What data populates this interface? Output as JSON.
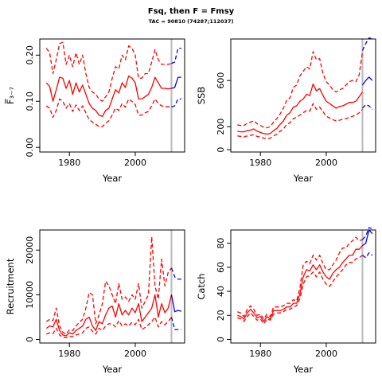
{
  "title": "Fsq, then F = Fmsy",
  "subtitle": "TAC = 90810 (74287;112037)",
  "colors": {
    "historic": "#ff0000",
    "projection": "#0000ff",
    "year_marker": "#bebebe",
    "axes": "#000000"
  },
  "chart_data": [
    {
      "type": "line",
      "id": "fbar",
      "xlabel": "Year",
      "ylabel": "F̅₃₋₇",
      "xlim": [
        1971,
        2015
      ],
      "ylim": [
        -0.01,
        0.235
      ],
      "xticks": [
        1980,
        2000
      ],
      "yticks": [
        0.0,
        0.1,
        0.2
      ],
      "ytick_labels": [
        "0.00",
        "0.10",
        "0.20"
      ],
      "assessment_year": 2011,
      "historic": {
        "x": [
          1973,
          1974,
          1975,
          1976,
          1977,
          1978,
          1979,
          1980,
          1981,
          1982,
          1983,
          1984,
          1985,
          1986,
          1987,
          1988,
          1989,
          1990,
          1991,
          1992,
          1993,
          1994,
          1995,
          1996,
          1997,
          1998,
          1999,
          2000,
          2001,
          2002,
          2003,
          2004,
          2005,
          2006,
          2007,
          2008,
          2009,
          2010,
          2011
        ],
        "median": [
          0.14,
          0.132,
          0.1,
          0.125,
          0.152,
          0.15,
          0.128,
          0.145,
          0.115,
          0.14,
          0.12,
          0.135,
          0.115,
          0.095,
          0.085,
          0.08,
          0.07,
          0.067,
          0.08,
          0.085,
          0.105,
          0.125,
          0.118,
          0.14,
          0.13,
          0.155,
          0.15,
          0.14,
          0.105,
          0.105,
          0.11,
          0.115,
          0.13,
          0.152,
          0.14,
          0.128,
          0.128,
          0.127,
          0.128
        ],
        "upper": [
          0.215,
          0.205,
          0.16,
          0.19,
          0.225,
          0.228,
          0.18,
          0.2,
          0.175,
          0.205,
          0.18,
          0.2,
          0.16,
          0.13,
          0.12,
          0.115,
          0.105,
          0.1,
          0.11,
          0.12,
          0.15,
          0.175,
          0.17,
          0.2,
          0.19,
          0.22,
          0.215,
          0.2,
          0.15,
          0.15,
          0.16,
          0.16,
          0.185,
          0.212,
          0.19,
          0.18,
          0.18,
          0.18,
          0.182
        ],
        "lower": [
          0.09,
          0.085,
          0.065,
          0.08,
          0.105,
          0.1,
          0.085,
          0.095,
          0.078,
          0.092,
          0.08,
          0.09,
          0.075,
          0.06,
          0.055,
          0.05,
          0.045,
          0.045,
          0.052,
          0.058,
          0.07,
          0.085,
          0.08,
          0.095,
          0.087,
          0.105,
          0.1,
          0.093,
          0.07,
          0.07,
          0.075,
          0.078,
          0.09,
          0.105,
          0.095,
          0.09,
          0.088,
          0.088,
          0.088
        ]
      },
      "projection": {
        "x": [
          2011,
          2012,
          2013,
          2014
        ],
        "median": [
          0.128,
          0.13,
          0.152,
          0.152
        ],
        "upper": [
          0.182,
          0.185,
          0.215,
          0.215
        ],
        "lower": [
          0.088,
          0.09,
          0.105,
          0.105
        ]
      }
    },
    {
      "type": "line",
      "id": "ssb",
      "xlabel": "Year",
      "ylabel": "SSB",
      "xlim": [
        1971,
        2015
      ],
      "ylim": [
        -20,
        960
      ],
      "xticks": [
        1980,
        2000
      ],
      "yticks": [
        0,
        200,
        600
      ],
      "ytick_labels": [
        "0",
        "200",
        "600"
      ],
      "assessment_year": 2011,
      "historic": {
        "x": [
          1973,
          1974,
          1975,
          1976,
          1977,
          1978,
          1979,
          1980,
          1981,
          1982,
          1983,
          1984,
          1985,
          1986,
          1987,
          1988,
          1989,
          1990,
          1991,
          1992,
          1993,
          1994,
          1995,
          1996,
          1997,
          1998,
          1999,
          2000,
          2001,
          2002,
          2003,
          2004,
          2005,
          2006,
          2007,
          2008,
          2009,
          2010,
          2011
        ],
        "median": [
          160,
          155,
          155,
          165,
          170,
          180,
          160,
          150,
          140,
          135,
          140,
          165,
          185,
          220,
          250,
          300,
          320,
          370,
          380,
          420,
          440,
          480,
          470,
          570,
          510,
          530,
          470,
          420,
          400,
          380,
          360,
          375,
          380,
          395,
          410,
          410,
          420,
          460,
          500
        ],
        "upper": [
          215,
          210,
          210,
          230,
          240,
          250,
          225,
          210,
          195,
          190,
          200,
          240,
          270,
          310,
          360,
          430,
          450,
          540,
          560,
          640,
          680,
          720,
          700,
          850,
          780,
          790,
          660,
          590,
          560,
          520,
          500,
          520,
          530,
          560,
          590,
          600,
          590,
          650,
          850
        ],
        "lower": [
          120,
          115,
          110,
          120,
          125,
          130,
          115,
          110,
          100,
          95,
          100,
          120,
          135,
          160,
          180,
          220,
          235,
          270,
          280,
          300,
          320,
          340,
          335,
          400,
          350,
          370,
          330,
          290,
          275,
          260,
          250,
          255,
          265,
          270,
          280,
          290,
          300,
          320,
          350
        ]
      },
      "projection": {
        "x": [
          2011,
          2012,
          2013,
          2014
        ],
        "median": [
          560,
          600,
          630,
          600
        ],
        "upper": [
          860,
          920,
          970,
          960
        ],
        "lower": [
          360,
          390,
          380,
          350
        ]
      }
    },
    {
      "type": "line",
      "id": "recruitment",
      "xlabel": "Year",
      "ylabel": "Recruitment",
      "xlim": [
        1971,
        2015
      ],
      "ylim": [
        -800,
        24500
      ],
      "xticks": [
        1980,
        2000
      ],
      "yticks": [
        0,
        10000,
        20000
      ],
      "ytick_labels": [
        "0",
        "10000",
        "20000"
      ],
      "assessment_year": 2011,
      "historic": {
        "x": [
          1973,
          1974,
          1975,
          1976,
          1977,
          1978,
          1979,
          1980,
          1981,
          1982,
          1983,
          1984,
          1985,
          1986,
          1987,
          1988,
          1989,
          1990,
          1991,
          1992,
          1993,
          1994,
          1995,
          1996,
          1997,
          1998,
          1999,
          2000,
          2001,
          2002,
          2003,
          2004,
          2005,
          2006,
          2007,
          2008,
          2009,
          2010,
          2011
        ],
        "median": [
          2500,
          3000,
          2800,
          4500,
          2000,
          1000,
          800,
          1500,
          1200,
          2000,
          2500,
          3000,
          4500,
          5000,
          3000,
          2000,
          4000,
          3500,
          5500,
          7000,
          7500,
          5000,
          8000,
          5500,
          6500,
          5500,
          7000,
          6000,
          8000,
          4000,
          5000,
          6000,
          7000,
          10000,
          5000,
          8000,
          6000,
          7000,
          10000
        ],
        "upper": [
          4000,
          4500,
          4200,
          7000,
          3000,
          1600,
          1200,
          2200,
          2000,
          3000,
          3800,
          4500,
          7000,
          10500,
          10000,
          3500,
          5500,
          8000,
          13000,
          12000,
          10000,
          8000,
          12500,
          9000,
          9500,
          8500,
          10000,
          9000,
          12500,
          7000,
          8500,
          10000,
          23000,
          12000,
          9000,
          18000,
          12000,
          15000,
          16000
        ],
        "lower": [
          1200,
          1500,
          1300,
          2500,
          1000,
          500,
          400,
          700,
          600,
          1000,
          1200,
          1500,
          2500,
          2800,
          1800,
          1200,
          2500,
          2000,
          3000,
          3500,
          3500,
          2800,
          4200,
          3000,
          3500,
          3000,
          3800,
          3300,
          4500,
          2200,
          2700,
          3300,
          4000,
          5000,
          2800,
          4000,
          3300,
          4000,
          5000
        ]
      },
      "projection": {
        "x": [
          2011,
          2012,
          2013,
          2014
        ],
        "median": [
          10000,
          6200,
          6500,
          6300
        ],
        "upper": [
          16000,
          14000,
          13500,
          13500
        ],
        "lower": [
          5000,
          2200,
          2200,
          2200
        ]
      }
    },
    {
      "type": "line",
      "id": "catch",
      "xlabel": "Year",
      "ylabel": "Catch",
      "xlim": [
        1971,
        2015
      ],
      "ylim": [
        -3,
        91
      ],
      "xticks": [
        1980,
        2000
      ],
      "yticks": [
        0,
        20,
        40,
        60,
        80
      ],
      "ytick_labels": [
        "0",
        "20",
        "40",
        "60",
        "80"
      ],
      "assessment_year": 2011,
      "historic": {
        "x": [
          1973,
          1974,
          1975,
          1976,
          1977,
          1978,
          1979,
          1980,
          1981,
          1982,
          1983,
          1984,
          1985,
          1986,
          1987,
          1988,
          1989,
          1990,
          1991,
          1992,
          1993,
          1994,
          1995,
          1996,
          1997,
          1998,
          1999,
          2000,
          2001,
          2002,
          2003,
          2004,
          2005,
          2006,
          2007,
          2008,
          2009,
          2010,
          2011
        ],
        "median": [
          20,
          19,
          17,
          22,
          25,
          22,
          18,
          19,
          15,
          19,
          17,
          24,
          24,
          24,
          25,
          27,
          27,
          30,
          30,
          38,
          52,
          58,
          57,
          62,
          58,
          62,
          56,
          52,
          50,
          55,
          58,
          60,
          64,
          67,
          70,
          70,
          75,
          75,
          78
        ],
        "upper": [
          23,
          22,
          19,
          25,
          28,
          25,
          20,
          21,
          17,
          21,
          19,
          27,
          27,
          27,
          28,
          30,
          30,
          33,
          32,
          43,
          62,
          65,
          63,
          70,
          66,
          70,
          63,
          58,
          58,
          62,
          66,
          72,
          76,
          76,
          80,
          82,
          85,
          82,
          83
        ],
        "lower": [
          18,
          17,
          15,
          19,
          22,
          19,
          16,
          17,
          13,
          17,
          16,
          21,
          22,
          22,
          23,
          25,
          25,
          27,
          28,
          34,
          46,
          52,
          53,
          56,
          52,
          56,
          50,
          46,
          44,
          48,
          52,
          55,
          58,
          62,
          64,
          64,
          67,
          68,
          70
        ]
      },
      "projection": {
        "x": [
          2011,
          2012,
          2013,
          2014
        ],
        "median": [
          78,
          80,
          91,
          88
        ],
        "upper": [
          83,
          86,
          93,
          92
        ],
        "lower": [
          70,
          68,
          72,
          70
        ]
      }
    }
  ]
}
